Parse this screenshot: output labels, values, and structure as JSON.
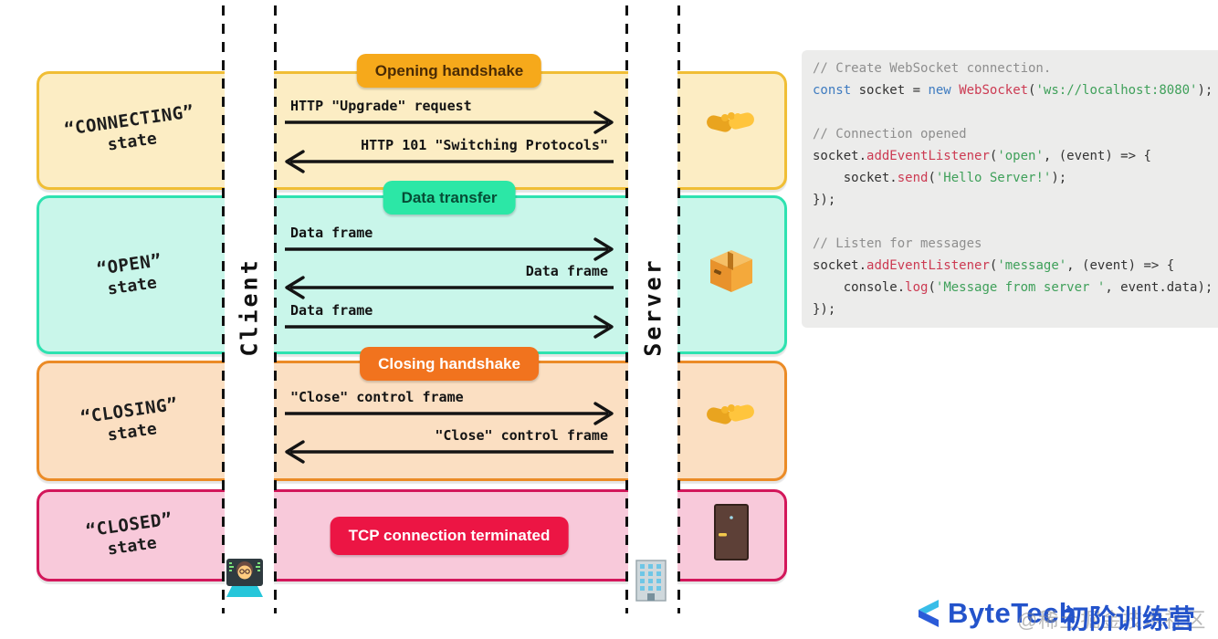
{
  "diagram": {
    "lifelines": [
      {
        "label": "Client"
      },
      {
        "label": "Server"
      }
    ],
    "rows": [
      {
        "state_title": "“CONNECTING”",
        "state_subtitle": "state",
        "phase_label": "Opening handshake",
        "icon": "handshake-icon",
        "messages": [
          {
            "text": "HTTP \"Upgrade\" request",
            "dir": "right"
          },
          {
            "text": "HTTP 101 \"Switching Protocols\"",
            "dir": "left"
          }
        ],
        "colors": {
          "bg": "#FCEDC4",
          "border": "#F0BE35",
          "pill_bg": "#F6A91B",
          "pill_text": "#4A2B05"
        }
      },
      {
        "state_title": "“OPEN”",
        "state_subtitle": "state",
        "phase_label": "Data transfer",
        "icon": "package-icon",
        "messages": [
          {
            "text": "Data frame",
            "dir": "right"
          },
          {
            "text": "Data frame",
            "dir": "left"
          },
          {
            "text": "Data frame",
            "dir": "right"
          }
        ],
        "colors": {
          "bg": "#C9F6EA",
          "border": "#2EE2B0",
          "pill_bg": "#2CE7A6",
          "pill_text": "#064D36"
        }
      },
      {
        "state_title": "“CLOSING”",
        "state_subtitle": "state",
        "phase_label": "Closing handshake",
        "icon": "handshake-icon",
        "messages": [
          {
            "text": "\"Close\" control frame",
            "dir": "right"
          },
          {
            "text": "\"Close\" control frame",
            "dir": "left"
          }
        ],
        "colors": {
          "bg": "#FBDFC2",
          "border": "#EB8B26",
          "pill_bg": "#F1731E",
          "pill_text": "#FFFFFF"
        }
      },
      {
        "state_title": "“CLOSED”",
        "state_subtitle": "state",
        "phase_label": "TCP connection terminated",
        "icon": "door-icon",
        "messages": [],
        "colors": {
          "bg": "#F8C9DA",
          "border": "#D3175B",
          "pill_bg": "#EC1544",
          "pill_text": "#FFFFFF"
        }
      }
    ],
    "client_icon": "technologist-icon",
    "server_icon": "office-building-icon"
  },
  "code_panel": {
    "colors": {
      "plain": "#333333",
      "comment": "#8E8E8E",
      "keyword": "#3E7BC0",
      "function": "#CC3A52",
      "string": "#3FA05A",
      "background": "#ECECEB"
    },
    "lines": [
      [
        {
          "c": "cm",
          "t": "// Create WebSocket connection."
        }
      ],
      [
        {
          "c": "kw",
          "t": "const"
        },
        {
          "c": "pl",
          "t": " socket = "
        },
        {
          "c": "kw",
          "t": "new"
        },
        {
          "c": "pl",
          "t": " "
        },
        {
          "c": "fn",
          "t": "WebSocket"
        },
        {
          "c": "pl",
          "t": "("
        },
        {
          "c": "str",
          "t": "'ws://localhost:8080'"
        },
        {
          "c": "pl",
          "t": ");"
        }
      ],
      [],
      [
        {
          "c": "cm",
          "t": "// Connection opened"
        }
      ],
      [
        {
          "c": "pl",
          "t": "socket."
        },
        {
          "c": "fn",
          "t": "addEventListener"
        },
        {
          "c": "pl",
          "t": "("
        },
        {
          "c": "str",
          "t": "'open'"
        },
        {
          "c": "pl",
          "t": ", (event) => {"
        }
      ],
      [
        {
          "c": "pl",
          "t": "    socket."
        },
        {
          "c": "fn",
          "t": "send"
        },
        {
          "c": "pl",
          "t": "("
        },
        {
          "c": "str",
          "t": "'Hello Server!'"
        },
        {
          "c": "pl",
          "t": ");"
        }
      ],
      [
        {
          "c": "pl",
          "t": "});"
        }
      ],
      [],
      [
        {
          "c": "cm",
          "t": "// Listen for messages"
        }
      ],
      [
        {
          "c": "pl",
          "t": "socket."
        },
        {
          "c": "fn",
          "t": "addEventListener"
        },
        {
          "c": "pl",
          "t": "("
        },
        {
          "c": "str",
          "t": "'message'"
        },
        {
          "c": "pl",
          "t": ", (event) => {"
        }
      ],
      [
        {
          "c": "pl",
          "t": "    console."
        },
        {
          "c": "fn",
          "t": "log"
        },
        {
          "c": "pl",
          "t": "("
        },
        {
          "c": "str",
          "t": "'Message from server '"
        },
        {
          "c": "pl",
          "t": ", event.data);"
        }
      ],
      [
        {
          "c": "pl",
          "t": "});"
        }
      ]
    ]
  },
  "footer": {
    "brand": "ByteTech",
    "brand_suffix": "初阶训练营",
    "watermark": "@稀土掘金技术社区",
    "brand_color": "#2353CB"
  }
}
